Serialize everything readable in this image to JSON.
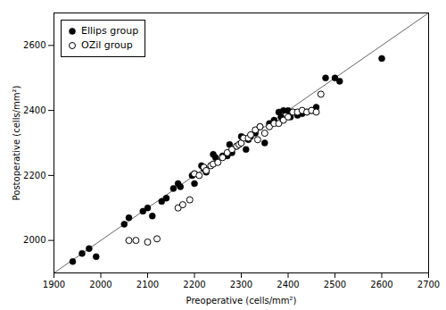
{
  "chart_data": {
    "type": "scatter",
    "xlabel": "Preoperative (cells/mm²)",
    "ylabel": "Postoperative (cells/mm²)",
    "xlim": [
      1900,
      2700
    ],
    "ylim": [
      1900,
      2700
    ],
    "xticks": [
      1900,
      2000,
      2100,
      2200,
      2300,
      2400,
      2500,
      2600,
      2700
    ],
    "yticks": [
      2000,
      2200,
      2400,
      2600
    ],
    "grid": false,
    "legend": "upper left",
    "series": [
      {
        "type": "line",
        "color": "#666666",
        "x": [
          1900,
          2700
        ],
        "values": [
          1900,
          2700
        ]
      },
      {
        "name": "Ellips group",
        "type": "scatter",
        "color": "#000000",
        "marker": "circle",
        "x": [
          1940,
          1960,
          1975,
          1990,
          2050,
          2060,
          2090,
          2100,
          2110,
          2130,
          2140,
          2155,
          2165,
          2170,
          2195,
          2200,
          2200,
          2215,
          2220,
          2225,
          2240,
          2245,
          2260,
          2270,
          2275,
          2280,
          2290,
          2300,
          2310,
          2315,
          2320,
          2330,
          2340,
          2350,
          2360,
          2370,
          2380,
          2385,
          2390,
          2400,
          2405,
          2410,
          2420,
          2430,
          2440,
          2450,
          2460,
          2480,
          2500,
          2510,
          2600
        ],
        "values": [
          1935,
          1960,
          1975,
          1950,
          2050,
          2070,
          2090,
          2100,
          2075,
          2120,
          2130,
          2160,
          2175,
          2165,
          2200,
          2205,
          2175,
          2230,
          2220,
          2210,
          2265,
          2255,
          2260,
          2260,
          2295,
          2270,
          2290,
          2320,
          2280,
          2310,
          2320,
          2330,
          2350,
          2300,
          2360,
          2370,
          2395,
          2380,
          2400,
          2400,
          2380,
          2395,
          2385,
          2390,
          2395,
          2400,
          2410,
          2500,
          2500,
          2490,
          2560
        ]
      },
      {
        "name": "OZil group",
        "type": "scatter",
        "color": "#000000",
        "marker": "open_circle",
        "x": [
          2060,
          2075,
          2100,
          2120,
          2165,
          2175,
          2190,
          2200,
          2210,
          2220,
          2225,
          2235,
          2240,
          2250,
          2260,
          2270,
          2280,
          2290,
          2295,
          2300,
          2305,
          2315,
          2320,
          2330,
          2335,
          2340,
          2350,
          2360,
          2370,
          2380,
          2390,
          2400,
          2410,
          2420,
          2430,
          2440,
          2450,
          2460,
          2470
        ],
        "values": [
          2000,
          2000,
          1995,
          2005,
          2100,
          2110,
          2125,
          2205,
          2200,
          2225,
          2215,
          2230,
          2235,
          2240,
          2255,
          2270,
          2280,
          2290,
          2295,
          2300,
          2315,
          2315,
          2325,
          2340,
          2310,
          2350,
          2330,
          2350,
          2360,
          2360,
          2370,
          2380,
          2395,
          2395,
          2400,
          2395,
          2400,
          2395,
          2450
        ]
      }
    ]
  }
}
